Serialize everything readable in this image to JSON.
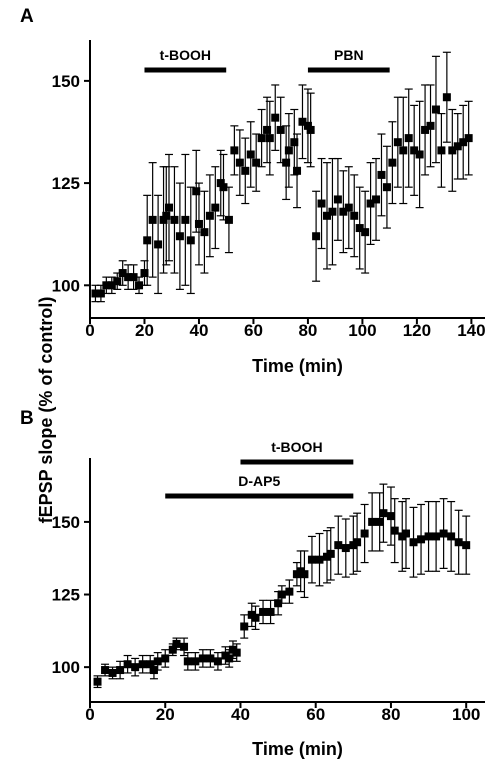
{
  "shared": {
    "ylabel": "fEPSP slope (% of control)"
  },
  "chart_data": [
    {
      "panel": "A",
      "type": "scatter",
      "xlabel": "Time (min)",
      "xlim": [
        0,
        145
      ],
      "ylim": [
        92,
        160
      ],
      "xticks": [
        0,
        20,
        40,
        60,
        80,
        100,
        120,
        140
      ],
      "yticks": [
        100,
        125,
        150
      ],
      "bars": [
        {
          "label": "t-BOOH",
          "start": 20,
          "end": 50
        },
        {
          "label": "PBN",
          "start": 80,
          "end": 110
        }
      ],
      "points": [
        [
          2,
          98,
          2
        ],
        [
          4,
          98,
          2
        ],
        [
          6,
          100,
          2
        ],
        [
          8,
          100,
          2
        ],
        [
          10,
          101,
          2
        ],
        [
          12,
          103,
          3
        ],
        [
          14,
          102,
          3
        ],
        [
          16,
          102,
          3
        ],
        [
          18,
          100,
          2
        ],
        [
          20,
          103,
          3
        ],
        [
          21,
          111,
          11
        ],
        [
          23,
          116,
          14
        ],
        [
          25,
          110,
          12
        ],
        [
          27,
          116,
          13
        ],
        [
          28,
          117,
          12
        ],
        [
          29,
          119,
          13
        ],
        [
          31,
          116,
          13
        ],
        [
          33,
          112,
          13
        ],
        [
          35,
          116,
          16
        ],
        [
          37,
          111,
          13
        ],
        [
          39,
          123,
          10
        ],
        [
          40,
          115,
          10
        ],
        [
          42,
          113,
          10
        ],
        [
          44,
          117,
          10
        ],
        [
          46,
          119,
          10
        ],
        [
          48,
          125,
          8
        ],
        [
          49,
          124,
          8
        ],
        [
          51,
          116,
          8
        ],
        [
          53,
          133,
          6
        ],
        [
          55,
          130,
          8
        ],
        [
          57,
          128,
          8
        ],
        [
          59,
          132,
          8
        ],
        [
          61,
          130,
          7
        ],
        [
          63,
          136,
          7
        ],
        [
          65,
          138,
          8
        ],
        [
          66,
          136,
          9
        ],
        [
          68,
          141,
          8
        ],
        [
          70,
          138,
          8
        ],
        [
          72,
          130,
          9
        ],
        [
          73,
          133,
          9
        ],
        [
          75,
          135,
          8
        ],
        [
          76,
          128,
          9
        ],
        [
          78,
          140,
          9
        ],
        [
          80,
          139,
          9
        ],
        [
          81,
          138,
          9
        ],
        [
          83,
          112,
          11
        ],
        [
          85,
          120,
          11
        ],
        [
          87,
          117,
          13
        ],
        [
          89,
          118,
          13
        ],
        [
          91,
          121,
          10
        ],
        [
          93,
          118,
          10
        ],
        [
          95,
          119,
          10
        ],
        [
          97,
          117,
          10
        ],
        [
          99,
          114,
          10
        ],
        [
          101,
          113,
          10
        ],
        [
          103,
          120,
          10
        ],
        [
          105,
          121,
          10
        ],
        [
          107,
          127,
          10
        ],
        [
          109,
          124,
          10
        ],
        [
          111,
          130,
          10
        ],
        [
          113,
          135,
          11
        ],
        [
          115,
          133,
          13
        ],
        [
          117,
          136,
          12
        ],
        [
          119,
          133,
          11
        ],
        [
          121,
          132,
          13
        ],
        [
          123,
          138,
          11
        ],
        [
          125,
          139,
          10
        ],
        [
          127,
          143,
          13
        ],
        [
          129,
          133,
          9
        ],
        [
          131,
          146,
          11
        ],
        [
          133,
          133,
          10
        ],
        [
          135,
          134,
          8
        ],
        [
          137,
          135,
          9
        ],
        [
          139,
          136,
          9
        ]
      ]
    },
    {
      "panel": "B",
      "type": "scatter",
      "xlabel": "Time (min)",
      "xlim": [
        0,
        105
      ],
      "ylim": [
        88,
        172
      ],
      "xticks": [
        0,
        20,
        40,
        60,
        80,
        100
      ],
      "yticks": [
        100,
        125,
        150
      ],
      "bars": [
        {
          "label": "t-BOOH",
          "start": 40,
          "end": 70
        },
        {
          "label": "D-AP5",
          "start": 20,
          "end": 70
        }
      ],
      "points": [
        [
          2,
          95,
          2
        ],
        [
          4,
          99,
          2
        ],
        [
          6,
          98,
          2
        ],
        [
          8,
          99,
          3
        ],
        [
          10,
          101,
          3
        ],
        [
          12,
          100,
          3
        ],
        [
          14,
          101,
          3
        ],
        [
          16,
          101,
          3
        ],
        [
          17,
          99,
          3
        ],
        [
          18,
          102,
          3
        ],
        [
          20,
          103,
          3
        ],
        [
          22,
          106,
          2
        ],
        [
          23,
          108,
          2
        ],
        [
          25,
          107,
          3
        ],
        [
          26,
          102,
          3
        ],
        [
          28,
          102,
          3
        ],
        [
          30,
          103,
          3
        ],
        [
          32,
          103,
          3
        ],
        [
          34,
          102,
          3
        ],
        [
          36,
          104,
          3
        ],
        [
          37,
          103,
          3
        ],
        [
          38,
          106,
          3
        ],
        [
          39,
          105,
          3
        ],
        [
          41,
          114,
          4
        ],
        [
          43,
          118,
          4
        ],
        [
          44,
          117,
          4
        ],
        [
          46,
          119,
          4
        ],
        [
          48,
          119,
          4
        ],
        [
          50,
          122,
          4
        ],
        [
          51,
          125,
          3
        ],
        [
          53,
          126,
          4
        ],
        [
          55,
          132,
          4
        ],
        [
          56,
          133,
          7
        ],
        [
          57,
          132,
          8
        ],
        [
          59,
          137,
          8
        ],
        [
          61,
          137,
          9
        ],
        [
          63,
          138,
          9
        ],
        [
          64,
          139,
          9
        ],
        [
          66,
          142,
          10
        ],
        [
          68,
          141,
          10
        ],
        [
          70,
          142,
          10
        ],
        [
          71,
          143,
          10
        ],
        [
          73,
          146,
          10
        ],
        [
          75,
          150,
          10
        ],
        [
          77,
          150,
          10
        ],
        [
          78,
          153,
          10
        ],
        [
          80,
          152,
          10
        ],
        [
          81,
          147,
          11
        ],
        [
          83,
          145,
          12
        ],
        [
          84,
          146,
          12
        ],
        [
          86,
          143,
          12
        ],
        [
          88,
          144,
          12
        ],
        [
          90,
          145,
          12
        ],
        [
          92,
          145,
          12
        ],
        [
          94,
          146,
          12
        ],
        [
          96,
          145,
          12
        ],
        [
          98,
          143,
          11
        ],
        [
          100,
          142,
          10
        ]
      ]
    }
  ]
}
